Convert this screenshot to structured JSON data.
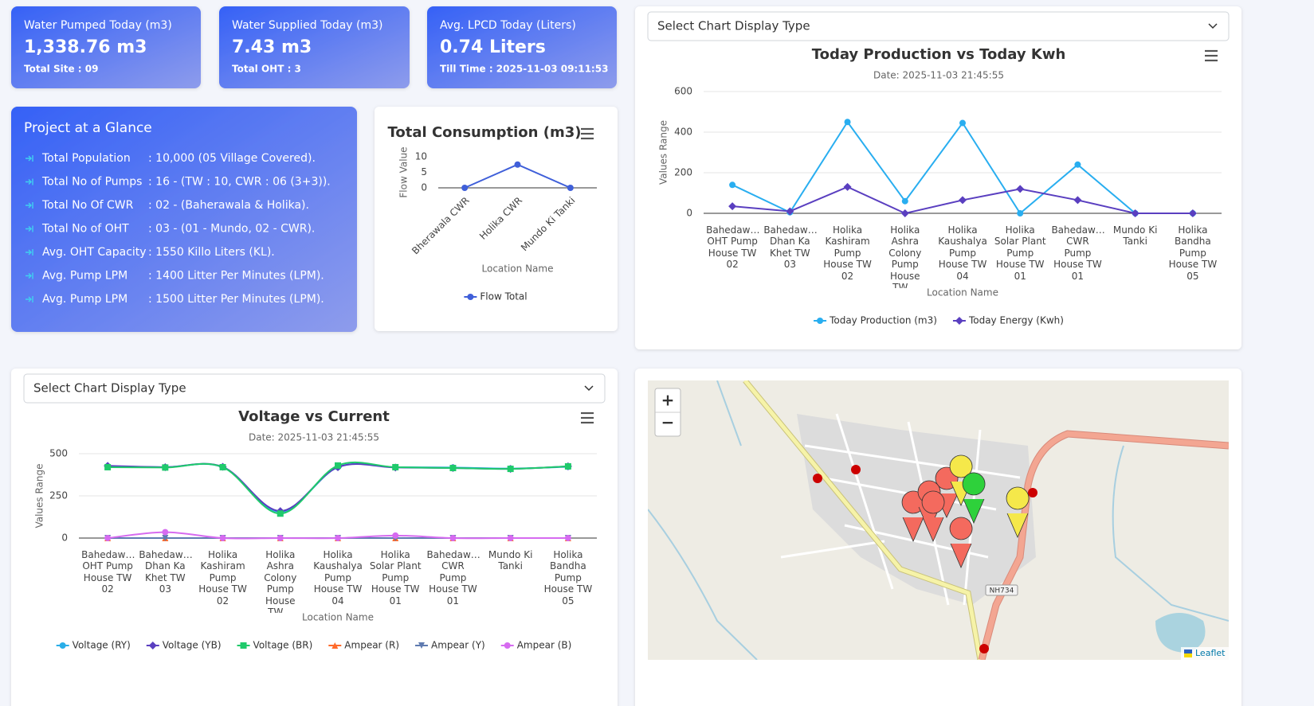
{
  "kpi_cards": [
    {
      "title": "Water Pumped Today (m3)",
      "value": "1,338.76 m3",
      "footer": "Total Site : 09"
    },
    {
      "title": "Water Supplied Today (m3)",
      "value": "7.43 m3",
      "footer": "Total OHT : 3"
    },
    {
      "title": "Avg. LPCD Today (Liters)",
      "value": "0.74 Liters",
      "footer": "Till Time : 2025-11-03 09:11:53"
    }
  ],
  "glance": {
    "title": "Project at a Glance",
    "rows": [
      {
        "label": "Total Population",
        "value": ": 10,000 (05 Village Covered)."
      },
      {
        "label": "Total No of Pumps",
        "value": ": 16 - (TW : 10, CWR : 06 (3+3))."
      },
      {
        "label": "Total No Of CWR",
        "value": ": 02 - (Baherawala & Holika)."
      },
      {
        "label": "Total No of OHT",
        "value": ": 03 - (01 - Mundo, 02 - CWR)."
      },
      {
        "label": "Avg. OHT Capacity",
        "value": ": 1550 Killo Liters (KL)."
      },
      {
        "label": "Avg. Pump LPM",
        "value": ": 1400 Litter Per Minutes (LPM)."
      },
      {
        "label": "Avg. Pump LPM",
        "value": ": 1500 Litter Per Minutes (LPM)."
      }
    ]
  },
  "selects": [
    "Select Chart Display Type",
    "Select Chart Display Type"
  ],
  "map": {
    "zoom_in": "+",
    "zoom_out": "−",
    "road_label": "NH734",
    "attribution": "Leaflet"
  },
  "chart_data": [
    {
      "type": "line",
      "title": "Total Consumption (m3)",
      "x_label": "Location Name",
      "y_label": "Flow Value",
      "categories": [
        "Bherawala CWR",
        "Holika CWR",
        "Mundo Ki Tanki"
      ],
      "x_label_rotation": -45,
      "series": [
        {
          "name": "Flow Total",
          "color": "#3f5fd9",
          "marker": "circle",
          "values": [
            0,
            7.5,
            0
          ]
        }
      ],
      "ylim": [
        0,
        10
      ],
      "yticks": [
        0,
        5,
        10
      ],
      "grid": false
    },
    {
      "type": "line",
      "title": "Today Production vs Today Kwh",
      "subtitle": "Date: 2025-11-03 21:45:55",
      "x_label": "Location Name",
      "y_label": "Values Range",
      "categories": [
        "Bahedaw… OHT Pump House TW 02",
        "Bahedaw… Dhan Ka Khet TW 03",
        "Holika Kashiram Pump House TW 02",
        "Holika Ashra Colony Pump House TW…",
        "Holika Kaushalya Pump House TW 04",
        "Holika Solar Plant Pump House TW 01",
        "Bahedaw… CWR Pump House TW 01",
        "Mundo Ki Tanki",
        "Holika Bandha Pump House TW 05"
      ],
      "series": [
        {
          "name": "Today Production (m3)",
          "color": "#29aef0",
          "marker": "circle",
          "values": [
            140,
            5,
            450,
            60,
            445,
            0,
            240,
            0,
            0
          ]
        },
        {
          "name": "Today Energy (Kwh)",
          "color": "#5a3fc0",
          "marker": "diamond",
          "values": [
            35,
            10,
            130,
            0,
            65,
            120,
            65,
            0,
            0
          ]
        }
      ],
      "ylim": [
        0,
        600
      ],
      "yticks": [
        0,
        200,
        400,
        600
      ],
      "grid": true
    },
    {
      "type": "line",
      "title": "Voltage vs Current",
      "subtitle": "Date: 2025-11-03 21:45:55",
      "x_label": "Location Name",
      "y_label": "Values Range",
      "smooth": true,
      "categories": [
        "Bahedaw… OHT Pump House TW 02",
        "Bahedaw… Dhan Ka Khet TW 03",
        "Holika Kashiram Pump House TW 02",
        "Holika Ashra Colony Pump House TW…",
        "Holika Kaushalya Pump House TW 04",
        "Holika Solar Plant Pump House TW 01",
        "Bahedaw… CWR Pump House TW 01",
        "Mundo Ki Tanki",
        "Holika Bandha Pump House TW 05"
      ],
      "series": [
        {
          "name": "Voltage (RY)",
          "color": "#2aaee8",
          "marker": "circle",
          "values": [
            425,
            420,
            420,
            155,
            420,
            420,
            418,
            412,
            422
          ]
        },
        {
          "name": "Voltage (YB)",
          "color": "#5a3fc0",
          "marker": "diamond",
          "values": [
            428,
            420,
            422,
            160,
            420,
            418,
            415,
            410,
            425
          ]
        },
        {
          "name": "Voltage (BR)",
          "color": "#1fca6b",
          "marker": "square",
          "values": [
            420,
            418,
            420,
            145,
            430,
            420,
            415,
            410,
            425
          ]
        },
        {
          "name": "Ampear (R)",
          "color": "#ff6a2a",
          "marker": "triangle",
          "values": [
            0,
            0,
            0,
            0,
            0,
            0,
            0,
            0,
            0
          ]
        },
        {
          "name": "Ampear (Y)",
          "color": "#5f7bb0",
          "marker": "triangle-down",
          "values": [
            0,
            0,
            0,
            0,
            0,
            0,
            0,
            0,
            0
          ]
        },
        {
          "name": "Ampear (B)",
          "color": "#d66bf0",
          "marker": "circle",
          "values": [
            0,
            35,
            0,
            0,
            0,
            15,
            0,
            0,
            0
          ]
        }
      ],
      "ylim": [
        0,
        500
      ],
      "yticks": [
        0,
        250,
        500
      ],
      "grid": true
    }
  ]
}
